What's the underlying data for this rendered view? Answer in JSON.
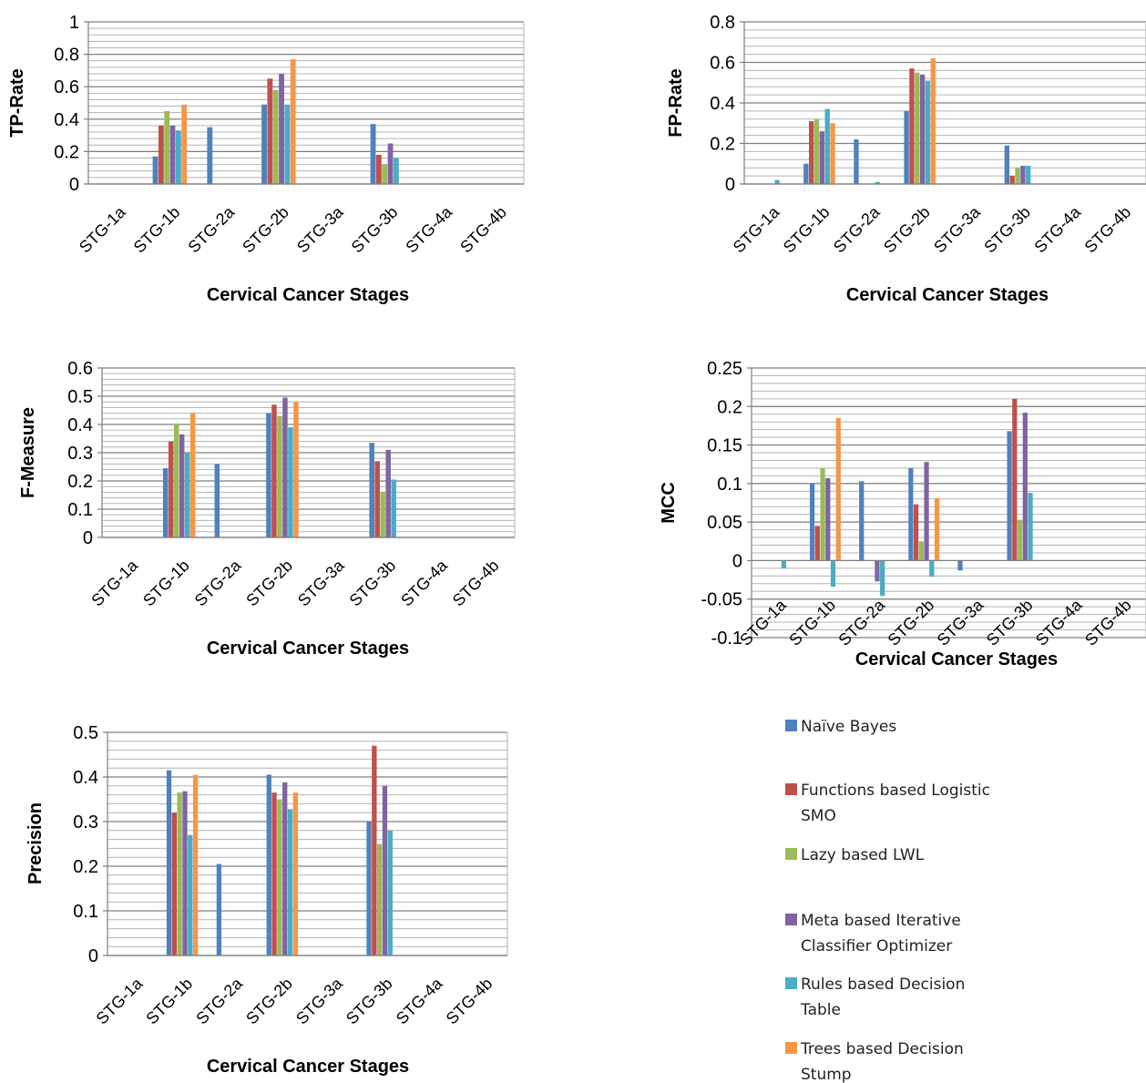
{
  "legend": {
    "items": [
      {
        "lines": [
          "Naïve Bayes"
        ],
        "color": "#4f81bd"
      },
      {
        "lines": [
          "Functions based Logistic",
          "SMO"
        ],
        "color": "#c0504d"
      },
      {
        "lines": [
          "Lazy based  LWL"
        ],
        "color": "#9bbb59"
      },
      {
        "lines": [
          "Meta based Iterative",
          "Classifier Optimizer"
        ],
        "color": "#8064a2"
      },
      {
        "lines": [
          "Rules based Decision",
          "Table"
        ],
        "color": "#4bacc6"
      },
      {
        "lines": [
          "Trees based Decision",
          "Stump"
        ],
        "color": "#f79646"
      }
    ]
  },
  "chart_data": [
    {
      "type": "bar",
      "ylabel": "TP-Rate",
      "xlabel": "Cervical Cancer Stages",
      "categories": [
        "STG-1a",
        "STG-1b",
        "STG-2a",
        "STG-2b",
        "STG-3a",
        "STG-3b",
        "STG-4a",
        "STG-4b"
      ],
      "ylim": [
        0,
        1
      ],
      "yticks": [
        "0",
        "0.2",
        "0.4",
        "0.6",
        "0.8",
        "1"
      ],
      "grid": true,
      "series": [
        {
          "values": [
            0,
            0.17,
            0.35,
            0.49,
            0,
            0.37,
            0,
            0
          ]
        },
        {
          "values": [
            0,
            0.36,
            0,
            0.65,
            0,
            0.18,
            0,
            0
          ]
        },
        {
          "values": [
            0,
            0.45,
            0,
            0.58,
            0,
            0.12,
            0,
            0
          ]
        },
        {
          "values": [
            0,
            0.36,
            0,
            0.68,
            0,
            0.25,
            0,
            0
          ]
        },
        {
          "values": [
            0,
            0.33,
            0,
            0.49,
            0,
            0.16,
            0,
            0
          ]
        },
        {
          "values": [
            0,
            0.49,
            0,
            0.77,
            0,
            0,
            0,
            0
          ]
        }
      ]
    },
    {
      "type": "bar",
      "ylabel": "FP-Rate",
      "xlabel": "Cervical Cancer Stages",
      "categories": [
        "STG-1a",
        "STG-1b",
        "STG-2a",
        "STG-2b",
        "STG-3a",
        "STG-3b",
        "STG-4a",
        "STG-4b"
      ],
      "ylim": [
        0,
        0.8
      ],
      "yticks": [
        "0",
        "0.2",
        "0.4",
        "0.6",
        "0.8"
      ],
      "grid": true,
      "series": [
        {
          "values": [
            0,
            0.1,
            0.22,
            0.36,
            0,
            0.19,
            0,
            0
          ]
        },
        {
          "values": [
            0,
            0.31,
            0,
            0.57,
            0,
            0.04,
            0,
            0
          ]
        },
        {
          "values": [
            0,
            0.32,
            0,
            0.55,
            0,
            0.08,
            0,
            0
          ]
        },
        {
          "values": [
            0,
            0.26,
            0,
            0.54,
            0,
            0.09,
            0,
            0
          ]
        },
        {
          "values": [
            0.02,
            0.37,
            0.01,
            0.51,
            0,
            0.09,
            0,
            0
          ]
        },
        {
          "values": [
            0,
            0.3,
            0,
            0.62,
            0,
            0,
            0,
            0
          ]
        }
      ]
    },
    {
      "type": "bar",
      "ylabel": "F-Measure",
      "xlabel": "Cervical Cancer Stages",
      "categories": [
        "STG-1a",
        "STG-1b",
        "STG-2a",
        "STG-2b",
        "STG-3a",
        "STG-3b",
        "STG-4a",
        "STG-4b"
      ],
      "ylim": [
        0,
        0.6
      ],
      "yticks": [
        "0",
        "0.1",
        "0.2",
        "0.3",
        "0.4",
        "0.5",
        "0.6"
      ],
      "grid": true,
      "series": [
        {
          "values": [
            0,
            0.245,
            0.26,
            0.44,
            0,
            0.335,
            0,
            0
          ]
        },
        {
          "values": [
            0,
            0.34,
            0,
            0.47,
            0,
            0.27,
            0,
            0
          ]
        },
        {
          "values": [
            0,
            0.4,
            0,
            0.43,
            0,
            0.16,
            0,
            0
          ]
        },
        {
          "values": [
            0,
            0.365,
            0,
            0.495,
            0,
            0.31,
            0,
            0
          ]
        },
        {
          "values": [
            0,
            0.3,
            0,
            0.39,
            0,
            0.205,
            0,
            0
          ]
        },
        {
          "values": [
            0,
            0.44,
            0,
            0.48,
            0,
            0,
            0,
            0
          ]
        }
      ]
    },
    {
      "type": "bar",
      "ylabel": "MCC",
      "xlabel": "Cervical Cancer Stages",
      "categories": [
        "STG-1a",
        "STG-1b",
        "STG-2a",
        "STG-2b",
        "STG-3a",
        "STG-3b",
        "STG-4a",
        "STG-4b"
      ],
      "ylim": [
        -0.1,
        0.25
      ],
      "yticks": [
        "-0.1",
        "-0.05",
        "0",
        "0.05",
        "0.1",
        "0.15",
        "0.2",
        "0.25"
      ],
      "grid": true,
      "series": [
        {
          "values": [
            0,
            0.1,
            0.103,
            0.12,
            -0.013,
            0.168,
            0,
            0
          ]
        },
        {
          "values": [
            0,
            0.045,
            0,
            0.073,
            0,
            0.21,
            0,
            0
          ]
        },
        {
          "values": [
            0,
            0.12,
            0,
            0.025,
            0,
            0.053,
            0,
            0
          ]
        },
        {
          "values": [
            0,
            0.107,
            -0.027,
            0.128,
            0,
            0.192,
            0,
            0
          ]
        },
        {
          "values": [
            -0.01,
            -0.034,
            -0.046,
            -0.021,
            0,
            0.088,
            0,
            0
          ]
        },
        {
          "values": [
            0,
            0.185,
            0,
            0.081,
            0,
            0,
            0,
            0
          ]
        }
      ]
    },
    {
      "type": "bar",
      "ylabel": "Precision",
      "xlabel": "Cervical Cancer Stages",
      "categories": [
        "STG-1a",
        "STG-1b",
        "STG-2a",
        "STG-2b",
        "STG-3a",
        "STG-3b",
        "STG-4a",
        "STG-4b"
      ],
      "ylim": [
        0,
        0.5
      ],
      "yticks": [
        "0",
        "0.1",
        "0.2",
        "0.3",
        "0.4",
        "0.5"
      ],
      "grid": true,
      "series": [
        {
          "values": [
            0,
            0.415,
            0.205,
            0.405,
            0,
            0.3,
            0,
            0
          ]
        },
        {
          "values": [
            0,
            0.32,
            0,
            0.365,
            0,
            0.47,
            0,
            0
          ]
        },
        {
          "values": [
            0,
            0.365,
            0,
            0.35,
            0,
            0.25,
            0,
            0
          ]
        },
        {
          "values": [
            0,
            0.368,
            0,
            0.388,
            0,
            0.38,
            0,
            0
          ]
        },
        {
          "values": [
            0,
            0.27,
            0,
            0.328,
            0,
            0.28,
            0,
            0
          ]
        },
        {
          "values": [
            0,
            0.405,
            0,
            0.365,
            0,
            0,
            0,
            0
          ]
        }
      ]
    }
  ]
}
